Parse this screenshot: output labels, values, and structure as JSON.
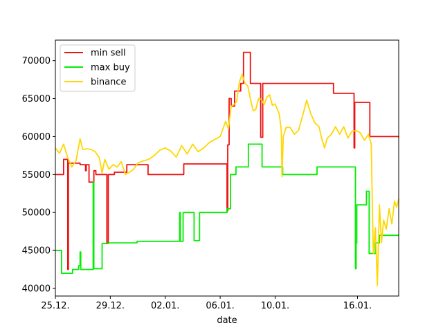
{
  "chart_data": {
    "type": "line",
    "title": "",
    "xlabel": "date",
    "ylabel": "",
    "x_ticks": [
      "25.12.",
      "29.12.",
      "02.01.",
      "06.01.",
      "10.01.",
      "16.01."
    ],
    "x_tick_days": [
      0,
      4,
      8,
      12,
      16,
      22
    ],
    "xlim_days": [
      0,
      25.0
    ],
    "ylim": [
      39000,
      72700
    ],
    "y_ticks": [
      40000,
      45000,
      50000,
      55000,
      60000,
      65000,
      70000
    ],
    "grid": false,
    "legend_position": "upper-left",
    "colors": {
      "min_sell": "#ee1111",
      "max_buy": "#00ee00",
      "binance": "#ffd700"
    },
    "series": [
      {
        "name": "min sell",
        "color": "#ee1111",
        "step": true,
        "points": [
          [
            0.0,
            55000
          ],
          [
            0.2,
            55000
          ],
          [
            0.35,
            55000
          ],
          [
            0.6,
            57000
          ],
          [
            0.85,
            57000
          ],
          [
            0.9,
            42500
          ],
          [
            0.95,
            56500
          ],
          [
            1.6,
            56500
          ],
          [
            1.8,
            56300
          ],
          [
            2.1,
            56300
          ],
          [
            2.2,
            55500
          ],
          [
            2.25,
            56300
          ],
          [
            2.4,
            56300
          ],
          [
            2.45,
            54000
          ],
          [
            2.75,
            54000
          ],
          [
            2.8,
            55500
          ],
          [
            2.95,
            55000
          ],
          [
            3.6,
            55000
          ],
          [
            3.75,
            46000
          ],
          [
            3.85,
            55000
          ],
          [
            4.2,
            55000
          ],
          [
            4.3,
            55300
          ],
          [
            5.15,
            55300
          ],
          [
            5.2,
            56300
          ],
          [
            6.7,
            56300
          ],
          [
            6.75,
            55000
          ],
          [
            9.3,
            55000
          ],
          [
            9.35,
            56400
          ],
          [
            12.45,
            56400
          ],
          [
            12.5,
            50200
          ],
          [
            12.55,
            58900
          ],
          [
            12.65,
            65000
          ],
          [
            12.8,
            64000
          ],
          [
            13.0,
            64000
          ],
          [
            13.05,
            66000
          ],
          [
            13.4,
            66000
          ],
          [
            13.5,
            67000
          ],
          [
            13.65,
            67000
          ],
          [
            13.7,
            71100
          ],
          [
            14.15,
            71100
          ],
          [
            14.2,
            67000
          ],
          [
            14.9,
            67000
          ],
          [
            14.95,
            59900
          ],
          [
            15.05,
            59900
          ],
          [
            15.1,
            67000
          ],
          [
            20.2,
            67000
          ],
          [
            20.25,
            65700
          ],
          [
            21.7,
            65700
          ],
          [
            21.75,
            58500
          ],
          [
            21.8,
            64500
          ],
          [
            22.85,
            64500
          ],
          [
            22.9,
            60000
          ],
          [
            25.0,
            59900
          ]
        ]
      },
      {
        "name": "max buy",
        "color": "#00ee00",
        "step": true,
        "points": [
          [
            0.0,
            45000
          ],
          [
            0.4,
            45000
          ],
          [
            0.45,
            42000
          ],
          [
            1.2,
            42000
          ],
          [
            1.25,
            42500
          ],
          [
            1.6,
            42500
          ],
          [
            1.7,
            43000
          ],
          [
            1.8,
            44800
          ],
          [
            1.85,
            42500
          ],
          [
            2.7,
            42500
          ],
          [
            2.75,
            54000
          ],
          [
            2.8,
            42600
          ],
          [
            3.35,
            42600
          ],
          [
            3.4,
            45900
          ],
          [
            3.8,
            45900
          ],
          [
            3.85,
            46000
          ],
          [
            5.9,
            46000
          ],
          [
            5.95,
            46200
          ],
          [
            9.0,
            46200
          ],
          [
            9.05,
            50000
          ],
          [
            9.1,
            46200
          ],
          [
            9.2,
            46200
          ],
          [
            9.3,
            50000
          ],
          [
            10.0,
            50000
          ],
          [
            10.1,
            46300
          ],
          [
            10.4,
            46300
          ],
          [
            10.5,
            50000
          ],
          [
            12.45,
            50000
          ],
          [
            12.5,
            50500
          ],
          [
            12.7,
            50500
          ],
          [
            12.75,
            55000
          ],
          [
            13.1,
            55000
          ],
          [
            13.15,
            56000
          ],
          [
            14.0,
            56000
          ],
          [
            14.05,
            59000
          ],
          [
            15.0,
            59000
          ],
          [
            15.05,
            56000
          ],
          [
            16.5,
            56000
          ],
          [
            16.55,
            55000
          ],
          [
            19.0,
            55000
          ],
          [
            19.05,
            56000
          ],
          [
            21.8,
            56000
          ],
          [
            21.85,
            42600
          ],
          [
            21.9,
            46000
          ],
          [
            21.95,
            51000
          ],
          [
            22.6,
            51000
          ],
          [
            22.65,
            52800
          ],
          [
            22.8,
            52800
          ],
          [
            22.85,
            44600
          ],
          [
            23.2,
            44600
          ],
          [
            23.3,
            46000
          ],
          [
            23.55,
            46000
          ],
          [
            23.6,
            47000
          ],
          [
            25.0,
            47000
          ]
        ]
      },
      {
        "name": "binance",
        "color": "#ffd700",
        "step": false,
        "points": [
          [
            0.0,
            58500
          ],
          [
            0.3,
            57800
          ],
          [
            0.6,
            59000
          ],
          [
            0.9,
            57200
          ],
          [
            1.2,
            56000
          ],
          [
            1.5,
            56800
          ],
          [
            1.8,
            59700
          ],
          [
            2.0,
            58300
          ],
          [
            2.3,
            58400
          ],
          [
            2.6,
            58300
          ],
          [
            2.9,
            58000
          ],
          [
            3.2,
            57200
          ],
          [
            3.4,
            55200
          ],
          [
            3.6,
            57000
          ],
          [
            3.9,
            55700
          ],
          [
            4.2,
            56300
          ],
          [
            4.5,
            56000
          ],
          [
            4.8,
            56700
          ],
          [
            5.1,
            55000
          ],
          [
            5.4,
            55300
          ],
          [
            5.7,
            55700
          ],
          [
            6.0,
            56500
          ],
          [
            6.4,
            56800
          ],
          [
            6.8,
            57000
          ],
          [
            7.2,
            57500
          ],
          [
            7.6,
            58200
          ],
          [
            8.0,
            58500
          ],
          [
            8.4,
            58100
          ],
          [
            8.8,
            57300
          ],
          [
            9.2,
            58800
          ],
          [
            9.6,
            57700
          ],
          [
            10.0,
            59000
          ],
          [
            10.4,
            58000
          ],
          [
            10.8,
            58500
          ],
          [
            11.2,
            59200
          ],
          [
            11.6,
            59600
          ],
          [
            12.0,
            60000
          ],
          [
            12.4,
            62000
          ],
          [
            12.6,
            61000
          ],
          [
            12.8,
            64000
          ],
          [
            13.0,
            64200
          ],
          [
            13.2,
            64600
          ],
          [
            13.4,
            67200
          ],
          [
            13.6,
            68200
          ],
          [
            13.8,
            67000
          ],
          [
            14.0,
            66700
          ],
          [
            14.2,
            65000
          ],
          [
            14.4,
            63400
          ],
          [
            14.6,
            63600
          ],
          [
            14.8,
            65000
          ],
          [
            15.0,
            64900
          ],
          [
            15.2,
            64200
          ],
          [
            15.4,
            65200
          ],
          [
            15.6,
            65500
          ],
          [
            15.8,
            64100
          ],
          [
            16.0,
            64300
          ],
          [
            16.3,
            63000
          ],
          [
            16.45,
            60800
          ],
          [
            16.5,
            54700
          ],
          [
            16.6,
            60000
          ],
          [
            16.8,
            61200
          ],
          [
            17.1,
            61200
          ],
          [
            17.4,
            60300
          ],
          [
            17.7,
            60800
          ],
          [
            18.0,
            62700
          ],
          [
            18.3,
            64800
          ],
          [
            18.6,
            63000
          ],
          [
            18.9,
            61800
          ],
          [
            19.2,
            61300
          ],
          [
            19.4,
            59700
          ],
          [
            19.6,
            58500
          ],
          [
            19.8,
            59800
          ],
          [
            20.1,
            60300
          ],
          [
            20.4,
            61300
          ],
          [
            20.7,
            60300
          ],
          [
            21.0,
            61300
          ],
          [
            21.3,
            59800
          ],
          [
            21.6,
            60700
          ],
          [
            21.9,
            60800
          ],
          [
            22.2,
            60500
          ],
          [
            22.5,
            59500
          ],
          [
            22.8,
            60300
          ],
          [
            23.0,
            59000
          ],
          [
            23.15,
            44600
          ],
          [
            23.3,
            48000
          ],
          [
            23.45,
            40400
          ],
          [
            23.6,
            51000
          ],
          [
            23.75,
            46000
          ],
          [
            23.9,
            49000
          ],
          [
            24.1,
            47800
          ],
          [
            24.3,
            50500
          ],
          [
            24.5,
            48500
          ],
          [
            24.7,
            51500
          ],
          [
            24.85,
            50700
          ],
          [
            25.0,
            51800
          ]
        ]
      }
    ]
  }
}
